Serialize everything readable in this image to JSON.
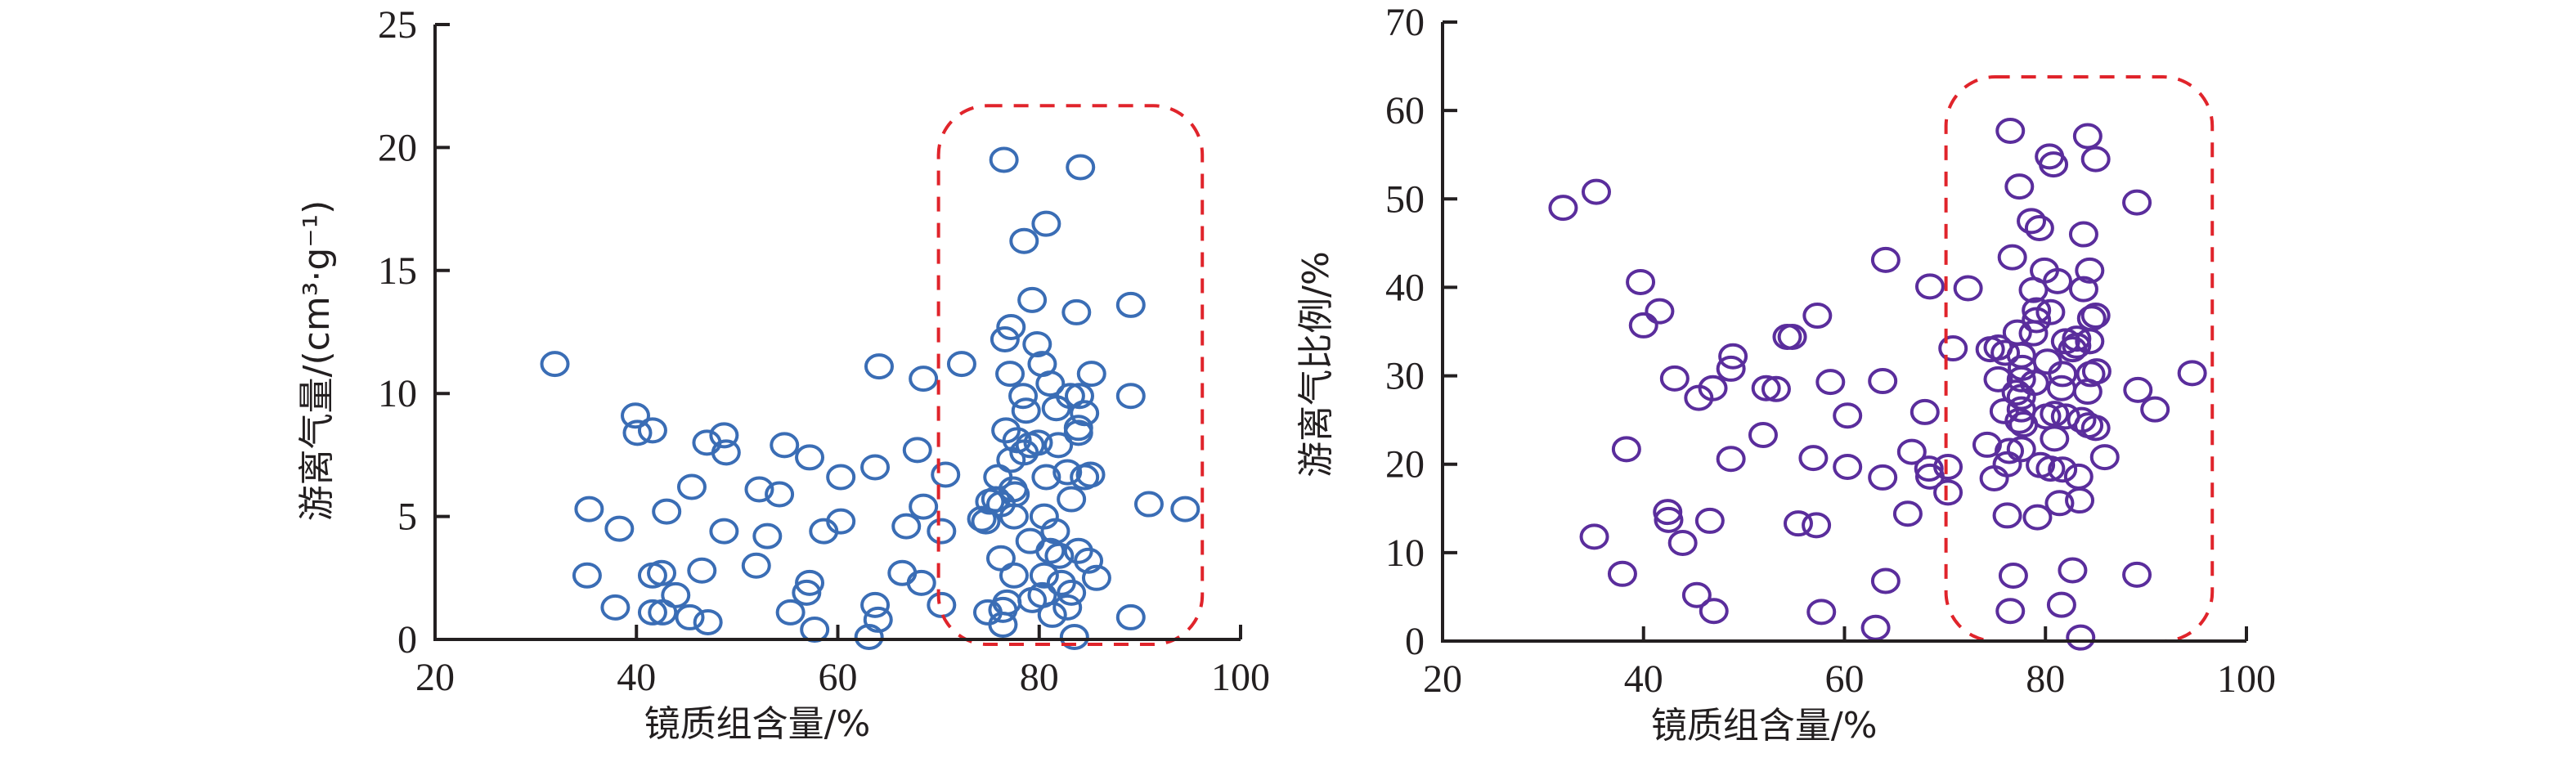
{
  "chart_data": [
    {
      "type": "scatter",
      "title": "",
      "xlabel": "镜质组含量/%",
      "ylabel": "游离气量/(cm³·g⁻¹)",
      "xlim": [
        20,
        100
      ],
      "ylim": [
        0,
        25
      ],
      "xticks": [
        20,
        40,
        60,
        80,
        100
      ],
      "yticks": [
        0,
        5,
        10,
        15,
        20,
        25
      ],
      "grid": false,
      "legend": "none",
      "marker": "open-circle",
      "color": "#3a6db5",
      "highlight_box": {
        "x": [
          70,
          96.2
        ],
        "y": [
          -0.2,
          21.7
        ],
        "style": "dashed",
        "color": "#e0242b"
      },
      "series": [
        {
          "name": "free-gas-volume",
          "points": [
            [
              31.9,
              11.2
            ],
            [
              35.3,
              5.3
            ],
            [
              35.1,
              2.6
            ],
            [
              38.3,
              4.5
            ],
            [
              37.9,
              1.3
            ],
            [
              39.9,
              9.1
            ],
            [
              40.1,
              8.4
            ],
            [
              41.6,
              8.5
            ],
            [
              41.6,
              2.6
            ],
            [
              41.6,
              1.1
            ],
            [
              42.5,
              2.7
            ],
            [
              42.6,
              1.1
            ],
            [
              43.0,
              5.2
            ],
            [
              43.9,
              1.8
            ],
            [
              45.3,
              0.9
            ],
            [
              45.5,
              6.2
            ],
            [
              46.5,
              2.8
            ],
            [
              47.0,
              8.0
            ],
            [
              47.1,
              0.7
            ],
            [
              48.7,
              8.3
            ],
            [
              48.9,
              7.6
            ],
            [
              48.7,
              4.4
            ],
            [
              51.9,
              3.0
            ],
            [
              52.2,
              6.1
            ],
            [
              53.0,
              4.2
            ],
            [
              54.2,
              5.9
            ],
            [
              54.7,
              7.9
            ],
            [
              55.3,
              1.1
            ],
            [
              56.9,
              1.9
            ],
            [
              57.2,
              2.3
            ],
            [
              57.2,
              7.4
            ],
            [
              57.7,
              0.4
            ],
            [
              58.6,
              4.4
            ],
            [
              60.3,
              4.8
            ],
            [
              60.3,
              6.6
            ],
            [
              63.1,
              0.1
            ],
            [
              63.7,
              1.4
            ],
            [
              63.7,
              7.0
            ],
            [
              64.0,
              0.8
            ],
            [
              64.1,
              11.1
            ],
            [
              66.4,
              2.7
            ],
            [
              66.8,
              4.6
            ],
            [
              67.9,
              7.7
            ],
            [
              68.3,
              2.3
            ],
            [
              68.5,
              5.4
            ],
            [
              68.5,
              10.6
            ],
            [
              70.3,
              1.4
            ],
            [
              70.3,
              4.4
            ],
            [
              70.7,
              6.7
            ],
            [
              72.3,
              11.2
            ],
            [
              74.3,
              4.9
            ],
            [
              74.7,
              4.8
            ],
            [
              74.9,
              1.1
            ],
            [
              75.1,
              5.6
            ],
            [
              75.7,
              5.7
            ],
            [
              75.9,
              6.6
            ],
            [
              76.2,
              5.5
            ],
            [
              76.2,
              3.3
            ],
            [
              76.4,
              1.2
            ],
            [
              76.4,
              0.6
            ],
            [
              76.5,
              19.5
            ],
            [
              76.6,
              12.2
            ],
            [
              76.7,
              8.5
            ],
            [
              76.8,
              1.5
            ],
            [
              77.1,
              10.8
            ],
            [
              77.2,
              12.7
            ],
            [
              77.2,
              7.3
            ],
            [
              77.4,
              6.1
            ],
            [
              77.5,
              5.0
            ],
            [
              77.5,
              2.6
            ],
            [
              77.6,
              5.9
            ],
            [
              77.8,
              8.1
            ],
            [
              78.4,
              9.9
            ],
            [
              78.5,
              16.2
            ],
            [
              78.5,
              7.6
            ],
            [
              78.7,
              9.3
            ],
            [
              79.1,
              7.9
            ],
            [
              79.1,
              4.0
            ],
            [
              79.3,
              13.8
            ],
            [
              79.3,
              1.6
            ],
            [
              79.8,
              12.0
            ],
            [
              79.9,
              8.0
            ],
            [
              80.3,
              11.2
            ],
            [
              80.3,
              1.8
            ],
            [
              80.5,
              5.0
            ],
            [
              80.5,
              2.6
            ],
            [
              80.7,
              16.9
            ],
            [
              80.7,
              6.6
            ],
            [
              81.1,
              10.4
            ],
            [
              81.1,
              3.6
            ],
            [
              81.3,
              1.0
            ],
            [
              81.6,
              4.4
            ],
            [
              81.7,
              9.4
            ],
            [
              81.9,
              7.9
            ],
            [
              82.0,
              3.4
            ],
            [
              82.2,
              2.3
            ],
            [
              82.8,
              6.8
            ],
            [
              82.8,
              1.3
            ],
            [
              83.1,
              9.9
            ],
            [
              83.2,
              5.7
            ],
            [
              83.2,
              1.9
            ],
            [
              83.5,
              0.1
            ],
            [
              83.7,
              13.3
            ],
            [
              83.9,
              8.4
            ],
            [
              83.9,
              8.6
            ],
            [
              83.9,
              3.6
            ],
            [
              84.0,
              9.9
            ],
            [
              84.1,
              19.2
            ],
            [
              84.5,
              9.2
            ],
            [
              84.5,
              6.6
            ],
            [
              84.9,
              3.2
            ],
            [
              85.1,
              6.7
            ],
            [
              85.2,
              10.8
            ],
            [
              85.7,
              2.5
            ],
            [
              89.1,
              13.6
            ],
            [
              89.1,
              9.9
            ],
            [
              89.1,
              0.9
            ],
            [
              90.9,
              5.5
            ],
            [
              94.5,
              5.3
            ]
          ]
        }
      ]
    },
    {
      "type": "scatter",
      "title": "",
      "xlabel": "镜质组含量/%",
      "ylabel": "游离气比例/%",
      "xlim": [
        20,
        100
      ],
      "ylim": [
        0,
        70
      ],
      "xticks": [
        20,
        40,
        60,
        80,
        100
      ],
      "yticks": [
        0,
        10,
        20,
        30,
        40,
        50,
        60,
        70
      ],
      "grid": false,
      "legend": "none",
      "marker": "open-circle",
      "color": "#5a2d9c",
      "highlight_box": {
        "x": [
          70.1,
          96.6
        ],
        "y": [
          0,
          63.8
        ],
        "style": "dashed",
        "color": "#e0242b"
      },
      "series": [
        {
          "name": "free-gas-ratio",
          "points": [
            [
              32.0,
              49.0
            ],
            [
              35.3,
              50.8
            ],
            [
              35.1,
              11.8
            ],
            [
              37.9,
              7.6
            ],
            [
              38.3,
              21.7
            ],
            [
              39.7,
              40.6
            ],
            [
              40.0,
              35.7
            ],
            [
              41.6,
              37.3
            ],
            [
              42.4,
              14.6
            ],
            [
              42.5,
              13.7
            ],
            [
              43.1,
              29.7
            ],
            [
              43.9,
              11.1
            ],
            [
              45.3,
              5.2
            ],
            [
              45.5,
              27.5
            ],
            [
              46.6,
              13.6
            ],
            [
              46.9,
              28.6
            ],
            [
              47.0,
              3.4
            ],
            [
              48.7,
              30.8
            ],
            [
              48.7,
              20.6
            ],
            [
              48.9,
              32.2
            ],
            [
              51.9,
              23.3
            ],
            [
              52.2,
              28.6
            ],
            [
              53.2,
              28.5
            ],
            [
              54.3,
              34.4
            ],
            [
              54.8,
              34.4
            ],
            [
              55.4,
              13.3
            ],
            [
              56.9,
              20.7
            ],
            [
              57.2,
              13.1
            ],
            [
              57.3,
              36.8
            ],
            [
              57.7,
              3.3
            ],
            [
              58.6,
              29.3
            ],
            [
              60.3,
              25.5
            ],
            [
              60.3,
              19.7
            ],
            [
              63.1,
              1.5
            ],
            [
              63.8,
              29.4
            ],
            [
              63.8,
              18.5
            ],
            [
              64.1,
              43.1
            ],
            [
              64.1,
              6.8
            ],
            [
              66.3,
              14.4
            ],
            [
              66.7,
              21.4
            ],
            [
              68.0,
              25.9
            ],
            [
              68.4,
              19.5
            ],
            [
              68.5,
              18.6
            ],
            [
              68.5,
              40.1
            ],
            [
              70.3,
              19.7
            ],
            [
              70.3,
              16.8
            ],
            [
              70.8,
              33.1
            ],
            [
              72.3,
              39.9
            ],
            [
              74.2,
              22.2
            ],
            [
              74.5,
              33.0
            ],
            [
              74.9,
              18.4
            ],
            [
              75.3,
              33.2
            ],
            [
              75.3,
              29.6
            ],
            [
              75.9,
              26.0
            ],
            [
              76.0,
              32.6
            ],
            [
              76.2,
              20.0
            ],
            [
              76.2,
              14.2
            ],
            [
              76.4,
              21.5
            ],
            [
              76.5,
              57.7
            ],
            [
              76.5,
              3.4
            ],
            [
              76.7,
              43.4
            ],
            [
              76.8,
              7.4
            ],
            [
              77.1,
              28.1
            ],
            [
              77.2,
              34.9
            ],
            [
              77.4,
              51.4
            ],
            [
              77.4,
              24.9
            ],
            [
              77.6,
              32.3
            ],
            [
              77.6,
              29.6
            ],
            [
              77.6,
              27.6
            ],
            [
              77.6,
              26.2
            ],
            [
              77.6,
              21.7
            ],
            [
              77.7,
              30.9
            ],
            [
              77.8,
              24.5
            ],
            [
              78.6,
              47.5
            ],
            [
              78.8,
              39.7
            ],
            [
              78.8,
              34.8
            ],
            [
              78.9,
              29.2
            ],
            [
              79.1,
              37.4
            ],
            [
              79.1,
              36.3
            ],
            [
              79.2,
              14.0
            ],
            [
              79.4,
              46.7
            ],
            [
              79.5,
              19.9
            ],
            [
              79.9,
              41.9
            ],
            [
              80.1,
              25.4
            ],
            [
              80.2,
              31.6
            ],
            [
              80.4,
              54.8
            ],
            [
              80.5,
              37.2
            ],
            [
              80.5,
              19.5
            ],
            [
              80.8,
              53.9
            ],
            [
              80.9,
              25.7
            ],
            [
              80.9,
              22.9
            ],
            [
              81.2,
              40.7
            ],
            [
              81.4,
              15.6
            ],
            [
              81.6,
              28.6
            ],
            [
              81.6,
              4.1
            ],
            [
              81.7,
              30.2
            ],
            [
              81.7,
              19.4
            ],
            [
              82.0,
              33.9
            ],
            [
              82.0,
              25.4
            ],
            [
              82.7,
              33.0
            ],
            [
              82.7,
              8.0
            ],
            [
              83.1,
              34.2
            ],
            [
              83.1,
              33.4
            ],
            [
              83.3,
              18.6
            ],
            [
              83.4,
              15.9
            ],
            [
              83.5,
              0.4
            ],
            [
              83.6,
              25.0
            ],
            [
              83.8,
              46.0
            ],
            [
              83.8,
              39.8
            ],
            [
              84.2,
              57.1
            ],
            [
              84.2,
              28.2
            ],
            [
              84.3,
              24.4
            ],
            [
              84.4,
              41.9
            ],
            [
              84.4,
              33.9
            ],
            [
              84.5,
              30.2
            ],
            [
              84.6,
              36.5
            ],
            [
              85.0,
              54.5
            ],
            [
              85.0,
              36.8
            ],
            [
              85.0,
              24.1
            ],
            [
              85.1,
              30.5
            ],
            [
              85.9,
              20.8
            ],
            [
              89.1,
              49.6
            ],
            [
              89.1,
              7.5
            ],
            [
              89.2,
              28.4
            ],
            [
              90.9,
              26.2
            ],
            [
              94.6,
              30.3
            ]
          ]
        }
      ]
    }
  ]
}
